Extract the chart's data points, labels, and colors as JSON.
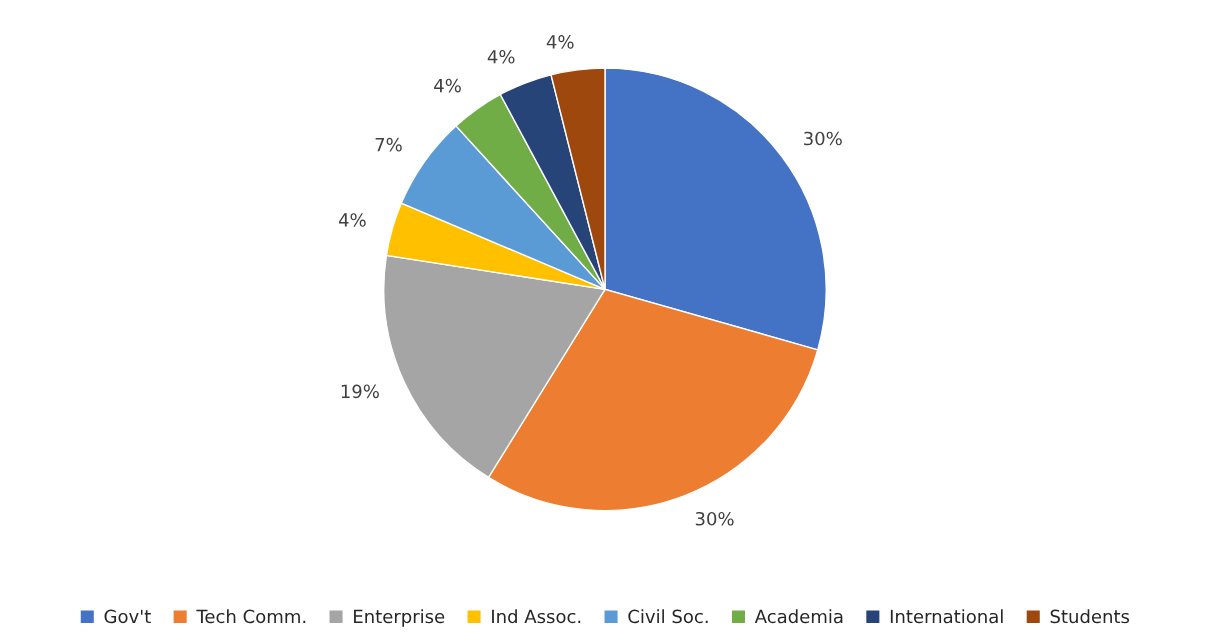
{
  "chart_data": {
    "type": "pie",
    "categories": [
      "Gov't",
      "Tech Comm.",
      "Enterprise",
      "Ind Assoc.",
      "Civil Soc.",
      "Academia",
      "International",
      "Students"
    ],
    "values": [
      30,
      30,
      19,
      4,
      7,
      4,
      4,
      4
    ],
    "value_labels": [
      "30%",
      "30%",
      "19%",
      "4%",
      "7%",
      "4%",
      "4%",
      "4%"
    ],
    "colors": [
      "#4472c4",
      "#ed7d31",
      "#a5a5a5",
      "#ffc000",
      "#5b9bd5",
      "#70ad47",
      "#264478",
      "#9e480e"
    ],
    "legend": "bottom"
  }
}
